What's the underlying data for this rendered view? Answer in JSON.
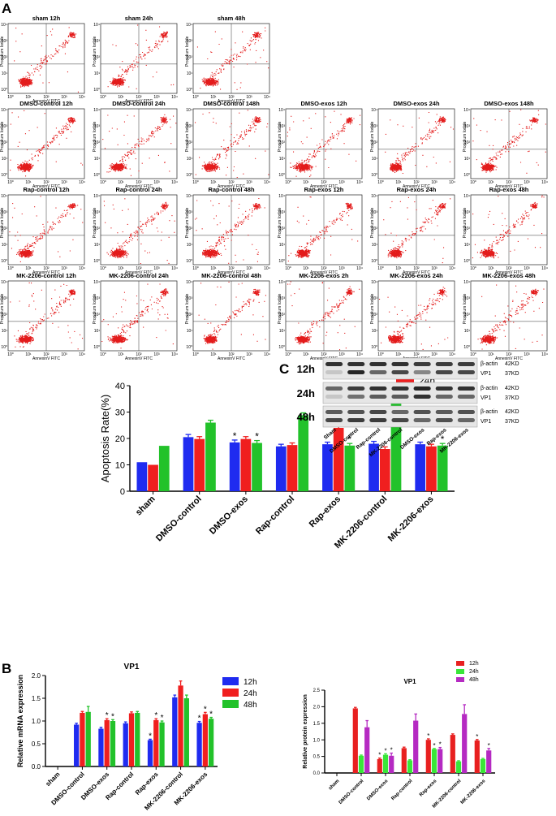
{
  "figure": {
    "panel_labels": {
      "a": "A",
      "b": "B",
      "c": "C"
    }
  },
  "flow": {
    "xlabel": "AnnexinV FITC",
    "ylabel": "Propidium Iodide",
    "tick_labels": [
      "10⁰",
      "10¹",
      "10²",
      "10³",
      "10⁴"
    ],
    "colors": {
      "dots": "#e31b1b"
    },
    "rows": [
      [
        "sham 12h",
        "sham 24h",
        "sham 48h"
      ],
      [
        "DMSO-control 12h",
        "DMSO-control 24h",
        "DMSO-control 148h",
        "DMSO-exos 12h",
        "DMSO-exos 24h",
        "DMSO-exos 148h"
      ],
      [
        "Rap-control 12h",
        "Rap-control 24h",
        "Rap-control 48h",
        "Rap-exos 12h",
        "Rap-exos 24h",
        "Rap-exos 48h"
      ],
      [
        "MK-2206-control 12h",
        "MK-2206-control 24h",
        "MK-2206-control 48h",
        "MK-2206-exos 2h",
        "MK-2206-exos 24h",
        "MK-2206-exos 48h"
      ]
    ]
  },
  "chart_data": [
    {
      "id": "apoptosis",
      "type": "bar",
      "title": "",
      "xlabel": "",
      "ylabel": "Apoptosis Rate(%)",
      "ylim": [
        0,
        40
      ],
      "yticks": [
        0,
        10,
        20,
        30,
        40
      ],
      "yticklabels": [
        "0",
        "10",
        "20",
        "30",
        "40"
      ],
      "categories": [
        "sham",
        "DMSO-control",
        "DMSO-exos",
        "Rap-control",
        "Rap-exos",
        "MK-2206-control",
        "MK-2206-exos"
      ],
      "legend_position": "top-right",
      "series": [
        {
          "name": "12h",
          "color": "#1f2bf0",
          "values": [
            11,
            20.5,
            18.5,
            17,
            17.8,
            18,
            17.8
          ],
          "errors": [
            0,
            1,
            0.9,
            0.8,
            0.8,
            0.9,
            0.8
          ],
          "stars": [
            false,
            false,
            true,
            false,
            false,
            false,
            false
          ]
        },
        {
          "name": "24h",
          "color": "#f01f1f",
          "values": [
            10,
            19.8,
            19.8,
            17.5,
            24,
            16,
            17
          ],
          "errors": [
            0,
            0.9,
            0.9,
            0.8,
            1,
            0.8,
            0.8
          ],
          "stars": [
            false,
            false,
            false,
            false,
            true,
            false,
            false
          ]
        },
        {
          "name": "48h",
          "color": "#22c22a",
          "values": [
            17.2,
            26,
            18.3,
            28.8,
            17.3,
            37,
            17.3
          ],
          "errors": [
            0,
            0.9,
            0.9,
            0.9,
            0.8,
            0.9,
            0.8
          ],
          "stars": [
            false,
            false,
            true,
            false,
            true,
            false,
            true
          ]
        }
      ],
      "star_symbol": "*"
    },
    {
      "id": "mrna",
      "type": "bar",
      "title": "VP1",
      "xlabel": "",
      "ylabel": "Relative mRNA expression",
      "ylim": [
        0,
        2.0
      ],
      "yticks": [
        0,
        0.5,
        1.0,
        1.5,
        2.0
      ],
      "yticklabels": [
        "0.0",
        "0.5",
        "1.0",
        "1.5",
        "2.0"
      ],
      "categories": [
        "sham",
        "DMSO-control",
        "DMSO-exos",
        "Rap-control",
        "Rap-exos",
        "MK-2206-control",
        "MK-2206-exos"
      ],
      "legend_position": "top-right",
      "series": [
        {
          "name": "12h",
          "color": "#1f2bf0",
          "values": [
            0,
            0.92,
            0.83,
            0.95,
            0.58,
            1.52,
            0.96
          ],
          "errors": [
            0,
            0.03,
            0.03,
            0.03,
            0.02,
            0.05,
            0.03
          ],
          "stars": [
            false,
            false,
            false,
            false,
            true,
            false,
            true
          ]
        },
        {
          "name": "24h",
          "color": "#f01f1f",
          "values": [
            0,
            1.18,
            1.02,
            1.17,
            1.02,
            1.78,
            1.15
          ],
          "errors": [
            0,
            0.03,
            0.03,
            0.03,
            0.03,
            0.1,
            0.04
          ],
          "stars": [
            false,
            false,
            true,
            false,
            true,
            false,
            true
          ]
        },
        {
          "name": "48h",
          "color": "#22c22a",
          "values": [
            0,
            1.2,
            1.0,
            1.18,
            0.97,
            1.5,
            1.05
          ],
          "errors": [
            0,
            0.12,
            0.03,
            0.03,
            0.03,
            0.07,
            0.03
          ],
          "stars": [
            false,
            false,
            true,
            false,
            true,
            false,
            true
          ]
        }
      ],
      "star_symbol": "*"
    },
    {
      "id": "protein",
      "type": "bar",
      "title": "VP1",
      "xlabel": "",
      "ylabel": "Relative protein expression",
      "ylim": [
        0,
        2.5
      ],
      "yticks": [
        0,
        0.5,
        1.0,
        1.5,
        2.0,
        2.5
      ],
      "yticklabels": [
        "0.0",
        "0.5",
        "1.0",
        "1.5",
        "2.0",
        "2.5"
      ],
      "categories": [
        "sham",
        "DMSO-control",
        "DMSO-exos",
        "Rap-control",
        "Rap-exos",
        "MK-2206-control",
        "MK-2206-exos"
      ],
      "legend_position": "top-right",
      "series": [
        {
          "name": "12h",
          "color": "#e82020",
          "values": [
            0,
            1.95,
            0.42,
            0.75,
            1.0,
            1.15,
            0.98
          ],
          "errors": [
            0,
            0.03,
            0.03,
            0.03,
            0.03,
            0.03,
            0.03
          ],
          "stars": [
            false,
            false,
            true,
            false,
            true,
            false,
            true
          ]
        },
        {
          "name": "24h",
          "color": "#39e639",
          "values": [
            0,
            0.52,
            0.55,
            0.38,
            0.72,
            0.35,
            0.42
          ],
          "errors": [
            0,
            0.02,
            0.03,
            0.02,
            0.02,
            0.02,
            0.02
          ],
          "stars": [
            false,
            false,
            true,
            false,
            true,
            false,
            false
          ]
        },
        {
          "name": "48h",
          "color": "#b52ac2",
          "values": [
            0,
            1.38,
            0.52,
            1.58,
            0.72,
            1.78,
            0.68
          ],
          "errors": [
            0,
            0.2,
            0.08,
            0.2,
            0.05,
            0.28,
            0.06
          ],
          "stars": [
            false,
            false,
            true,
            false,
            true,
            false,
            true
          ]
        }
      ],
      "star_symbol": "*"
    }
  ],
  "western": {
    "rows": [
      {
        "time": "12h",
        "labels": [
          "β-actin",
          "VP1"
        ],
        "sizes": [
          "42KD",
          "37KD"
        ],
        "top_intensity": [
          0.85,
          0.85,
          0.85,
          0.85,
          0.8,
          0.8,
          0.8
        ],
        "bottom_intensity": [
          0.15,
          0.9,
          0.6,
          0.75,
          0.45,
          0.75,
          0.75
        ]
      },
      {
        "time": "24h",
        "labels": [
          "β-actin",
          "VP1"
        ],
        "sizes": [
          "42KD",
          "37KD"
        ],
        "top_intensity": [
          0.6,
          0.8,
          0.85,
          0.85,
          0.9,
          0.85,
          0.85
        ],
        "bottom_intensity": [
          0.15,
          0.55,
          0.65,
          0.65,
          0.85,
          0.6,
          0.6
        ]
      },
      {
        "time": "48h",
        "labels": [
          "β-actin",
          "VP1"
        ],
        "sizes": [
          "42KD",
          "37KD"
        ],
        "top_intensity": [
          0.65,
          0.7,
          0.75,
          0.6,
          0.7,
          0.65,
          0.7
        ],
        "bottom_intensity": [
          0.75,
          0.8,
          0.8,
          0.75,
          0.6,
          0.7,
          0.6
        ]
      }
    ],
    "lanes": [
      "Sham",
      "DMSO-control",
      "Rap-control",
      "MK-2206-control",
      "DMSO-exos",
      "Rap-exos",
      "MK-2206-exos"
    ]
  }
}
